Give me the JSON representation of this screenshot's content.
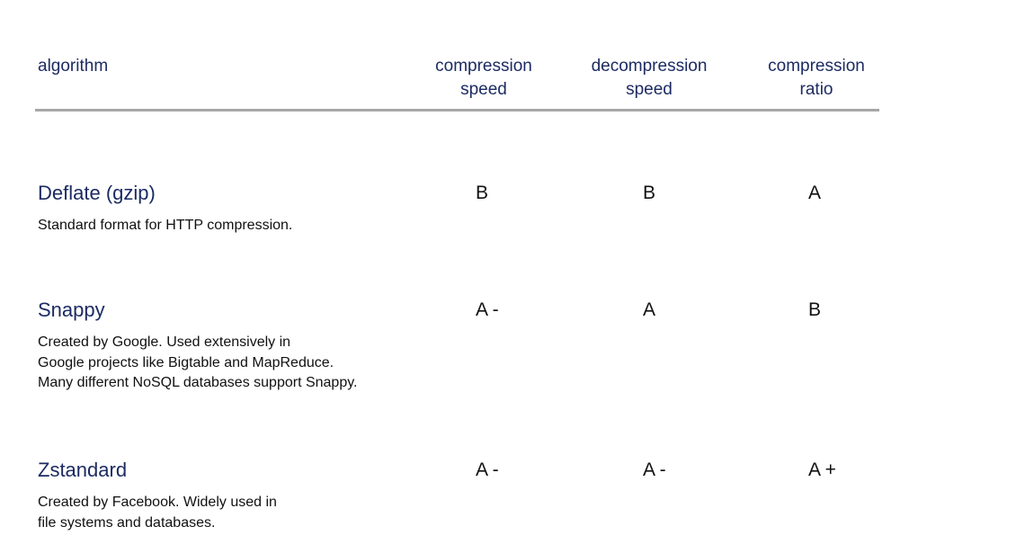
{
  "header": {
    "algorithm": "algorithm",
    "compression_speed": "compression\nspeed",
    "decompression_speed": "decompression\nspeed",
    "compression_ratio": "compression\nratio"
  },
  "rows": [
    {
      "name": "Deflate (gzip)",
      "description": "Standard format for HTTP compression.",
      "compression_speed": "B",
      "decompression_speed": "B",
      "compression_ratio": "A"
    },
    {
      "name": "Snappy",
      "description": "Created by Google. Used extensively in\nGoogle projects like Bigtable and MapReduce.\nMany different NoSQL databases support Snappy.",
      "compression_speed": "A -",
      "decompression_speed": "A",
      "compression_ratio": "B"
    },
    {
      "name": "Zstandard",
      "description": "Created by Facebook. Widely used in\nfile systems and databases.",
      "compression_speed": "A -",
      "decompression_speed": "A -",
      "compression_ratio": "A +"
    }
  ]
}
